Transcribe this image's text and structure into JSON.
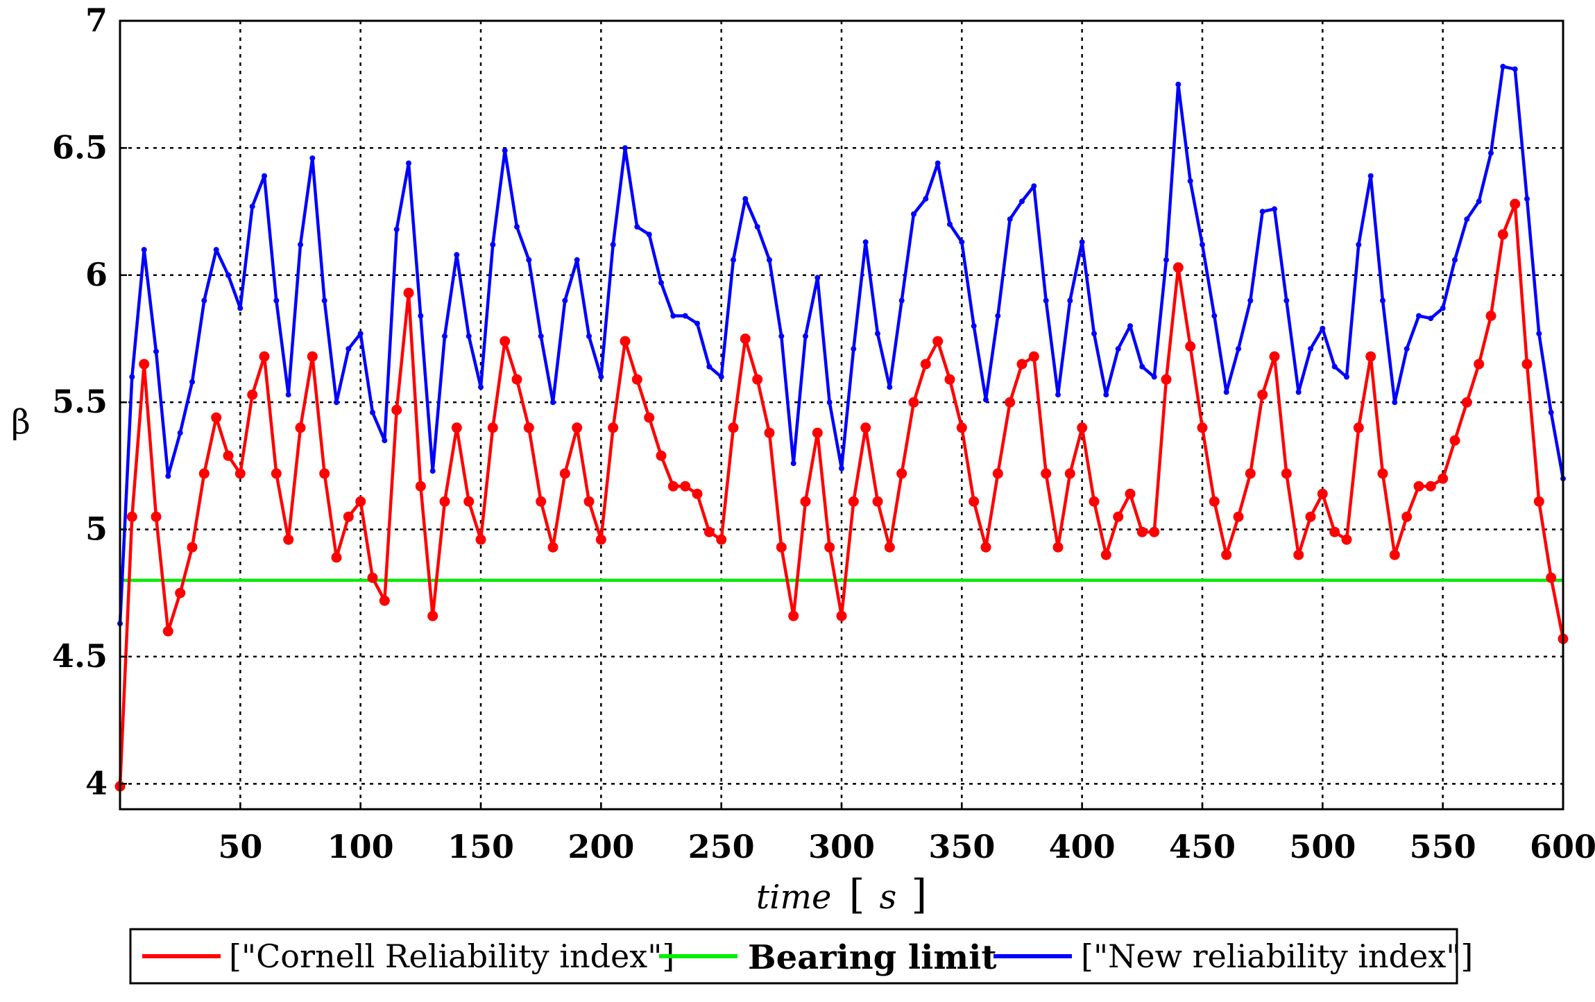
{
  "chart_data": {
    "type": "line",
    "title": "",
    "xlabel": "time [s]",
    "xlabel_parts": {
      "var": "time",
      "open": "[",
      "unit": "s",
      "close": "]"
    },
    "ylabel": "β",
    "xlim": [
      0,
      600
    ],
    "ylim": [
      3.9,
      7
    ],
    "xticks": [
      50,
      100,
      150,
      200,
      250,
      300,
      350,
      400,
      450,
      500,
      550,
      600
    ],
    "yticks": [
      4,
      4.5,
      5,
      5.5,
      6,
      6.5,
      7
    ],
    "ytick_labels": [
      "4",
      "4.5",
      "5",
      "5.5",
      "6",
      "6.5",
      "7"
    ],
    "grid": true,
    "legend_position": "bottom",
    "series": [
      {
        "name": "[\"Cornell Reliability index\"]",
        "color": "#ff0000",
        "marker": "circle",
        "x": [
          0,
          5,
          10,
          15,
          20,
          25,
          30,
          35,
          40,
          45,
          50,
          55,
          60,
          65,
          70,
          75,
          80,
          85,
          90,
          95,
          100,
          105,
          110,
          115,
          120,
          125,
          130,
          135,
          140,
          145,
          150,
          155,
          160,
          165,
          170,
          175,
          180,
          185,
          190,
          195,
          200,
          205,
          210,
          215,
          220,
          225,
          230,
          235,
          240,
          245,
          250,
          255,
          260,
          265,
          270,
          275,
          280,
          285,
          290,
          295,
          300,
          305,
          310,
          315,
          320,
          325,
          330,
          335,
          340,
          345,
          350,
          355,
          360,
          365,
          370,
          375,
          380,
          385,
          390,
          395,
          400,
          405,
          410,
          415,
          420,
          425,
          430,
          435,
          440,
          445,
          450,
          455,
          460,
          465,
          470,
          475,
          480,
          485,
          490,
          495,
          500,
          505,
          510,
          515,
          520,
          525,
          530,
          535,
          540,
          545,
          550,
          555,
          560,
          565,
          570,
          575,
          580,
          585,
          590,
          595,
          600
        ],
        "y": [
          3.99,
          5.05,
          5.65,
          5.05,
          4.6,
          4.75,
          4.93,
          5.22,
          5.44,
          5.29,
          5.22,
          5.53,
          5.68,
          5.22,
          4.96,
          5.4,
          5.68,
          5.22,
          4.89,
          5.05,
          5.11,
          4.81,
          4.72,
          5.47,
          5.93,
          5.17,
          4.66,
          5.11,
          5.4,
          5.11,
          4.96,
          5.4,
          5.74,
          5.59,
          5.4,
          5.11,
          4.93,
          5.22,
          5.4,
          5.11,
          4.96,
          5.4,
          5.74,
          5.59,
          5.44,
          5.29,
          5.17,
          5.17,
          5.14,
          4.99,
          4.96,
          5.4,
          5.75,
          5.59,
          5.38,
          4.93,
          4.66,
          5.11,
          5.38,
          4.93,
          4.66,
          5.11,
          5.4,
          5.11,
          4.93,
          5.22,
          5.5,
          5.65,
          5.74,
          5.59,
          5.4,
          5.11,
          4.93,
          5.22,
          5.5,
          5.65,
          5.68,
          5.22,
          4.93,
          5.22,
          5.4,
          5.11,
          4.9,
          5.05,
          5.14,
          4.99,
          4.99,
          5.59,
          6.03,
          5.72,
          5.4,
          5.11,
          4.9,
          5.05,
          5.22,
          5.53,
          5.68,
          5.22,
          4.9,
          5.05,
          5.14,
          4.99,
          4.96,
          5.4,
          5.68,
          5.22,
          4.9,
          5.05,
          5.17,
          5.17,
          5.2,
          5.35,
          5.5,
          5.65,
          5.84,
          6.16,
          6.28,
          5.65,
          5.11,
          4.81,
          4.57
        ]
      },
      {
        "name": "Bearing limit",
        "color": "#00ee00",
        "marker": "none",
        "x": [
          0,
          600
        ],
        "y": [
          4.8,
          4.8
        ]
      },
      {
        "name": "[\"New reliability index\"]",
        "color": "#0000ff",
        "marker": "dot",
        "x": [
          0,
          5,
          10,
          15,
          20,
          25,
          30,
          35,
          40,
          45,
          50,
          55,
          60,
          65,
          70,
          75,
          80,
          85,
          90,
          95,
          100,
          105,
          110,
          115,
          120,
          125,
          130,
          135,
          140,
          145,
          150,
          155,
          160,
          165,
          170,
          175,
          180,
          185,
          190,
          195,
          200,
          205,
          210,
          215,
          220,
          225,
          230,
          235,
          240,
          245,
          250,
          255,
          260,
          265,
          270,
          275,
          280,
          285,
          290,
          295,
          300,
          305,
          310,
          315,
          320,
          325,
          330,
          335,
          340,
          345,
          350,
          355,
          360,
          365,
          370,
          375,
          380,
          385,
          390,
          395,
          400,
          405,
          410,
          415,
          420,
          425,
          430,
          435,
          440,
          445,
          450,
          455,
          460,
          465,
          470,
          475,
          480,
          485,
          490,
          495,
          500,
          505,
          510,
          515,
          520,
          525,
          530,
          535,
          540,
          545,
          550,
          555,
          560,
          565,
          570,
          575,
          580,
          585,
          590,
          595,
          600
        ],
        "y": [
          4.63,
          5.6,
          6.1,
          5.7,
          5.21,
          5.38,
          5.58,
          5.9,
          6.1,
          6.0,
          5.87,
          6.27,
          6.39,
          5.9,
          5.53,
          6.12,
          6.46,
          5.9,
          5.5,
          5.71,
          5.77,
          5.46,
          5.35,
          6.18,
          6.44,
          5.84,
          5.23,
          5.76,
          6.08,
          5.76,
          5.56,
          6.12,
          6.49,
          6.19,
          6.06,
          5.76,
          5.5,
          5.9,
          6.06,
          5.76,
          5.6,
          6.12,
          6.5,
          6.19,
          6.16,
          5.97,
          5.84,
          5.84,
          5.81,
          5.64,
          5.6,
          6.06,
          6.3,
          6.19,
          6.06,
          5.76,
          5.26,
          5.76,
          5.99,
          5.5,
          5.24,
          5.71,
          6.13,
          5.77,
          5.56,
          5.9,
          6.24,
          6.3,
          6.44,
          6.2,
          6.13,
          5.8,
          5.51,
          5.84,
          6.22,
          6.29,
          6.35,
          5.9,
          5.53,
          5.9,
          6.13,
          5.77,
          5.53,
          5.71,
          5.8,
          5.64,
          5.6,
          6.06,
          6.75,
          6.37,
          6.12,
          5.84,
          5.54,
          5.71,
          5.9,
          6.25,
          6.26,
          5.9,
          5.54,
          5.71,
          5.79,
          5.64,
          5.6,
          6.12,
          6.39,
          5.9,
          5.5,
          5.71,
          5.84,
          5.83,
          5.87,
          6.06,
          6.22,
          6.29,
          6.48,
          6.82,
          6.81,
          6.3,
          5.77,
          5.46,
          5.2
        ]
      }
    ]
  }
}
